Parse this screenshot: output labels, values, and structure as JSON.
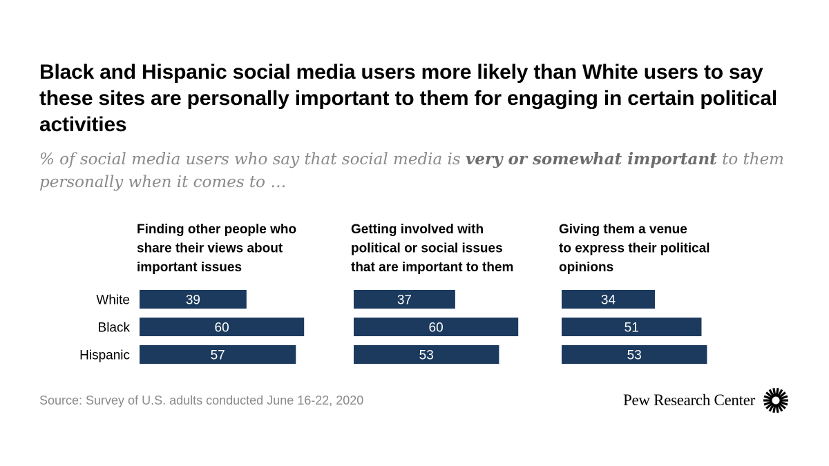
{
  "title": "Black and Hispanic social media users more likely than White users to say these sites are personally important to them for engaging in certain political activities",
  "subtitle": {
    "prefix": "% of social media users who say that social media is ",
    "emphasis": "very or somewhat important",
    "suffix": " to them personally when it comes to …"
  },
  "chart_data": {
    "type": "bar",
    "orientation": "horizontal",
    "categories": [
      "White",
      "Black",
      "Hispanic"
    ],
    "panels": [
      {
        "title_lines": [
          "Finding other people who",
          "share their views about",
          "important issues"
        ],
        "values": [
          39,
          60,
          57
        ]
      },
      {
        "title_lines": [
          "Getting involved with",
          "political or social issues",
          "that are important to them"
        ],
        "values": [
          37,
          60,
          53
        ]
      },
      {
        "title_lines": [
          "Giving them a venue",
          "to express their political",
          "opinions"
        ],
        "values": [
          34,
          51,
          53
        ]
      }
    ],
    "xlim": [
      0,
      100
    ],
    "bar_color": "#1b3a5e",
    "grid": false,
    "data_labels": true
  },
  "footer": {
    "source": "Source: Survey of U.S. adults conducted June 16-22, 2020",
    "brand": "Pew Research Center",
    "brand_icon": "pew-burst-logo-icon"
  }
}
